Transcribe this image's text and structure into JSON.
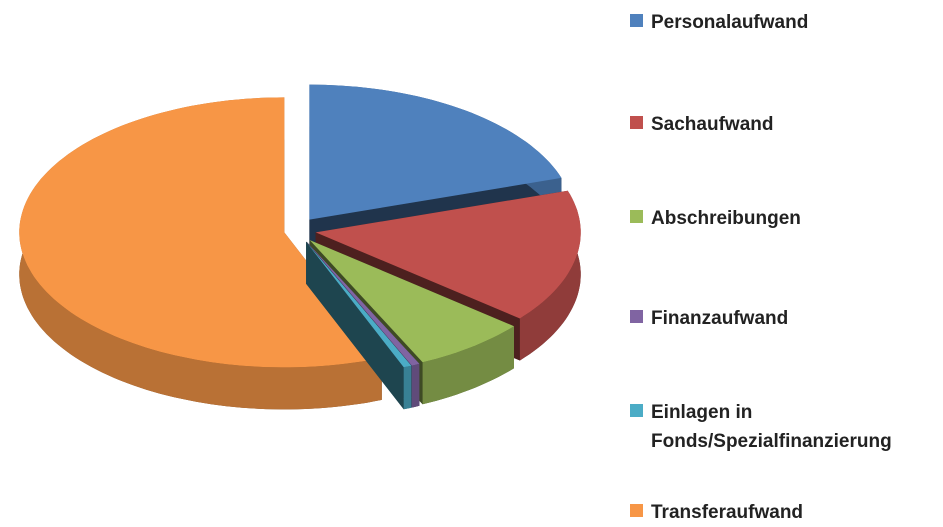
{
  "chart_data": {
    "type": "pie",
    "categories": [
      "Personalaufwand",
      "Sachaufwand",
      "Abschreibungen",
      "Finanzaufwand",
      "Einlagen in Fonds/Spezialfinanzierung",
      "Transferaufwand"
    ],
    "values": [
      20,
      16,
      7,
      0.5,
      0.5,
      56
    ],
    "colors": [
      "#4f81bd",
      "#c0504d",
      "#9bbb59",
      "#8064a2",
      "#4bacc6",
      "#f79646"
    ],
    "legend": "right"
  }
}
